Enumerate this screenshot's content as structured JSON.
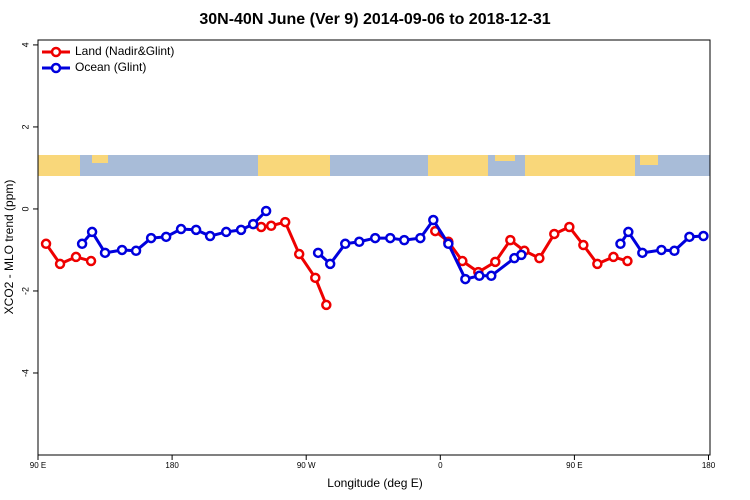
{
  "chart_data": {
    "type": "line",
    "title": "30N-40N June (Ver 9)   2014-09-06 to 2018-12-31",
    "x_label": "Longitude (deg E)",
    "y_label": "XCO2 - MLO trend (ppm)",
    "xlim": [
      90,
      541
    ],
    "ylim": [
      -6,
      4.12
    ],
    "xticks": [
      {
        "value": 90,
        "label": "90 E"
      },
      180,
      {
        "value": 270,
        "label": "90 W"
      },
      {
        "value": 360,
        "label": "0"
      },
      {
        "value": 450,
        "label": "90 E"
      },
      {
        "value": 540,
        "label": "180"
      }
    ],
    "yticks": [
      -4,
      -2,
      0,
      2,
      4
    ],
    "legend": "upper left",
    "series": [
      {
        "name": "Land (Nadir&Glint)",
        "color": "#ee0000",
        "x": [
          95.4,
          104.8,
          115.5,
          125.6,
          null,
          239.8,
          246.5,
          255.9,
          265.3,
          276.1,
          283.5,
          null,
          356.6,
          365.4,
          374.8,
          385.5,
          396.9,
          407.0,
          416.4,
          426.5,
          436.5,
          446.6,
          456.0,
          465.4,
          476.2,
          485.6
        ],
        "values": [
          -0.85,
          -1.34,
          -1.17,
          -1.27,
          null,
          -0.44,
          -0.41,
          -0.32,
          -1.1,
          -1.68,
          -2.34,
          null,
          -0.54,
          -0.8,
          -1.27,
          -1.54,
          -1.29,
          -0.76,
          -1.02,
          -1.2,
          -0.61,
          -0.44,
          -0.88,
          -1.34,
          -1.17,
          -1.27
        ]
      },
      {
        "name": "Ocean (Glint)",
        "color": "#0000dd",
        "x": [
          119.6,
          126.3,
          135.0,
          146.4,
          155.8,
          165.9,
          176.0,
          186.0,
          196.1,
          205.5,
          216.3,
          226.3,
          234.4,
          243.1,
          null,
          278.0,
          286.1,
          296.2,
          305.6,
          316.3,
          326.4,
          335.8,
          346.6,
          355.3,
          365.4,
          376.8,
          386.2,
          394.2,
          409.7,
          414.4,
          null,
          480.9,
          486.2,
          495.6,
          508.4,
          517.1,
          527.2,
          536.6
        ],
        "values": [
          -0.85,
          -0.56,
          -1.07,
          -1.0,
          -1.02,
          -0.71,
          -0.68,
          -0.49,
          -0.51,
          -0.66,
          -0.56,
          -0.51,
          -0.37,
          -0.05,
          null,
          -1.07,
          -1.34,
          -0.85,
          -0.8,
          -0.71,
          -0.71,
          -0.76,
          -0.71,
          -0.27,
          -0.85,
          -1.71,
          -1.63,
          -1.63,
          -1.2,
          -1.12,
          null,
          -0.85,
          -0.56,
          -1.07,
          -1.0,
          -1.02,
          -0.68,
          -0.66
        ]
      }
    ]
  }
}
